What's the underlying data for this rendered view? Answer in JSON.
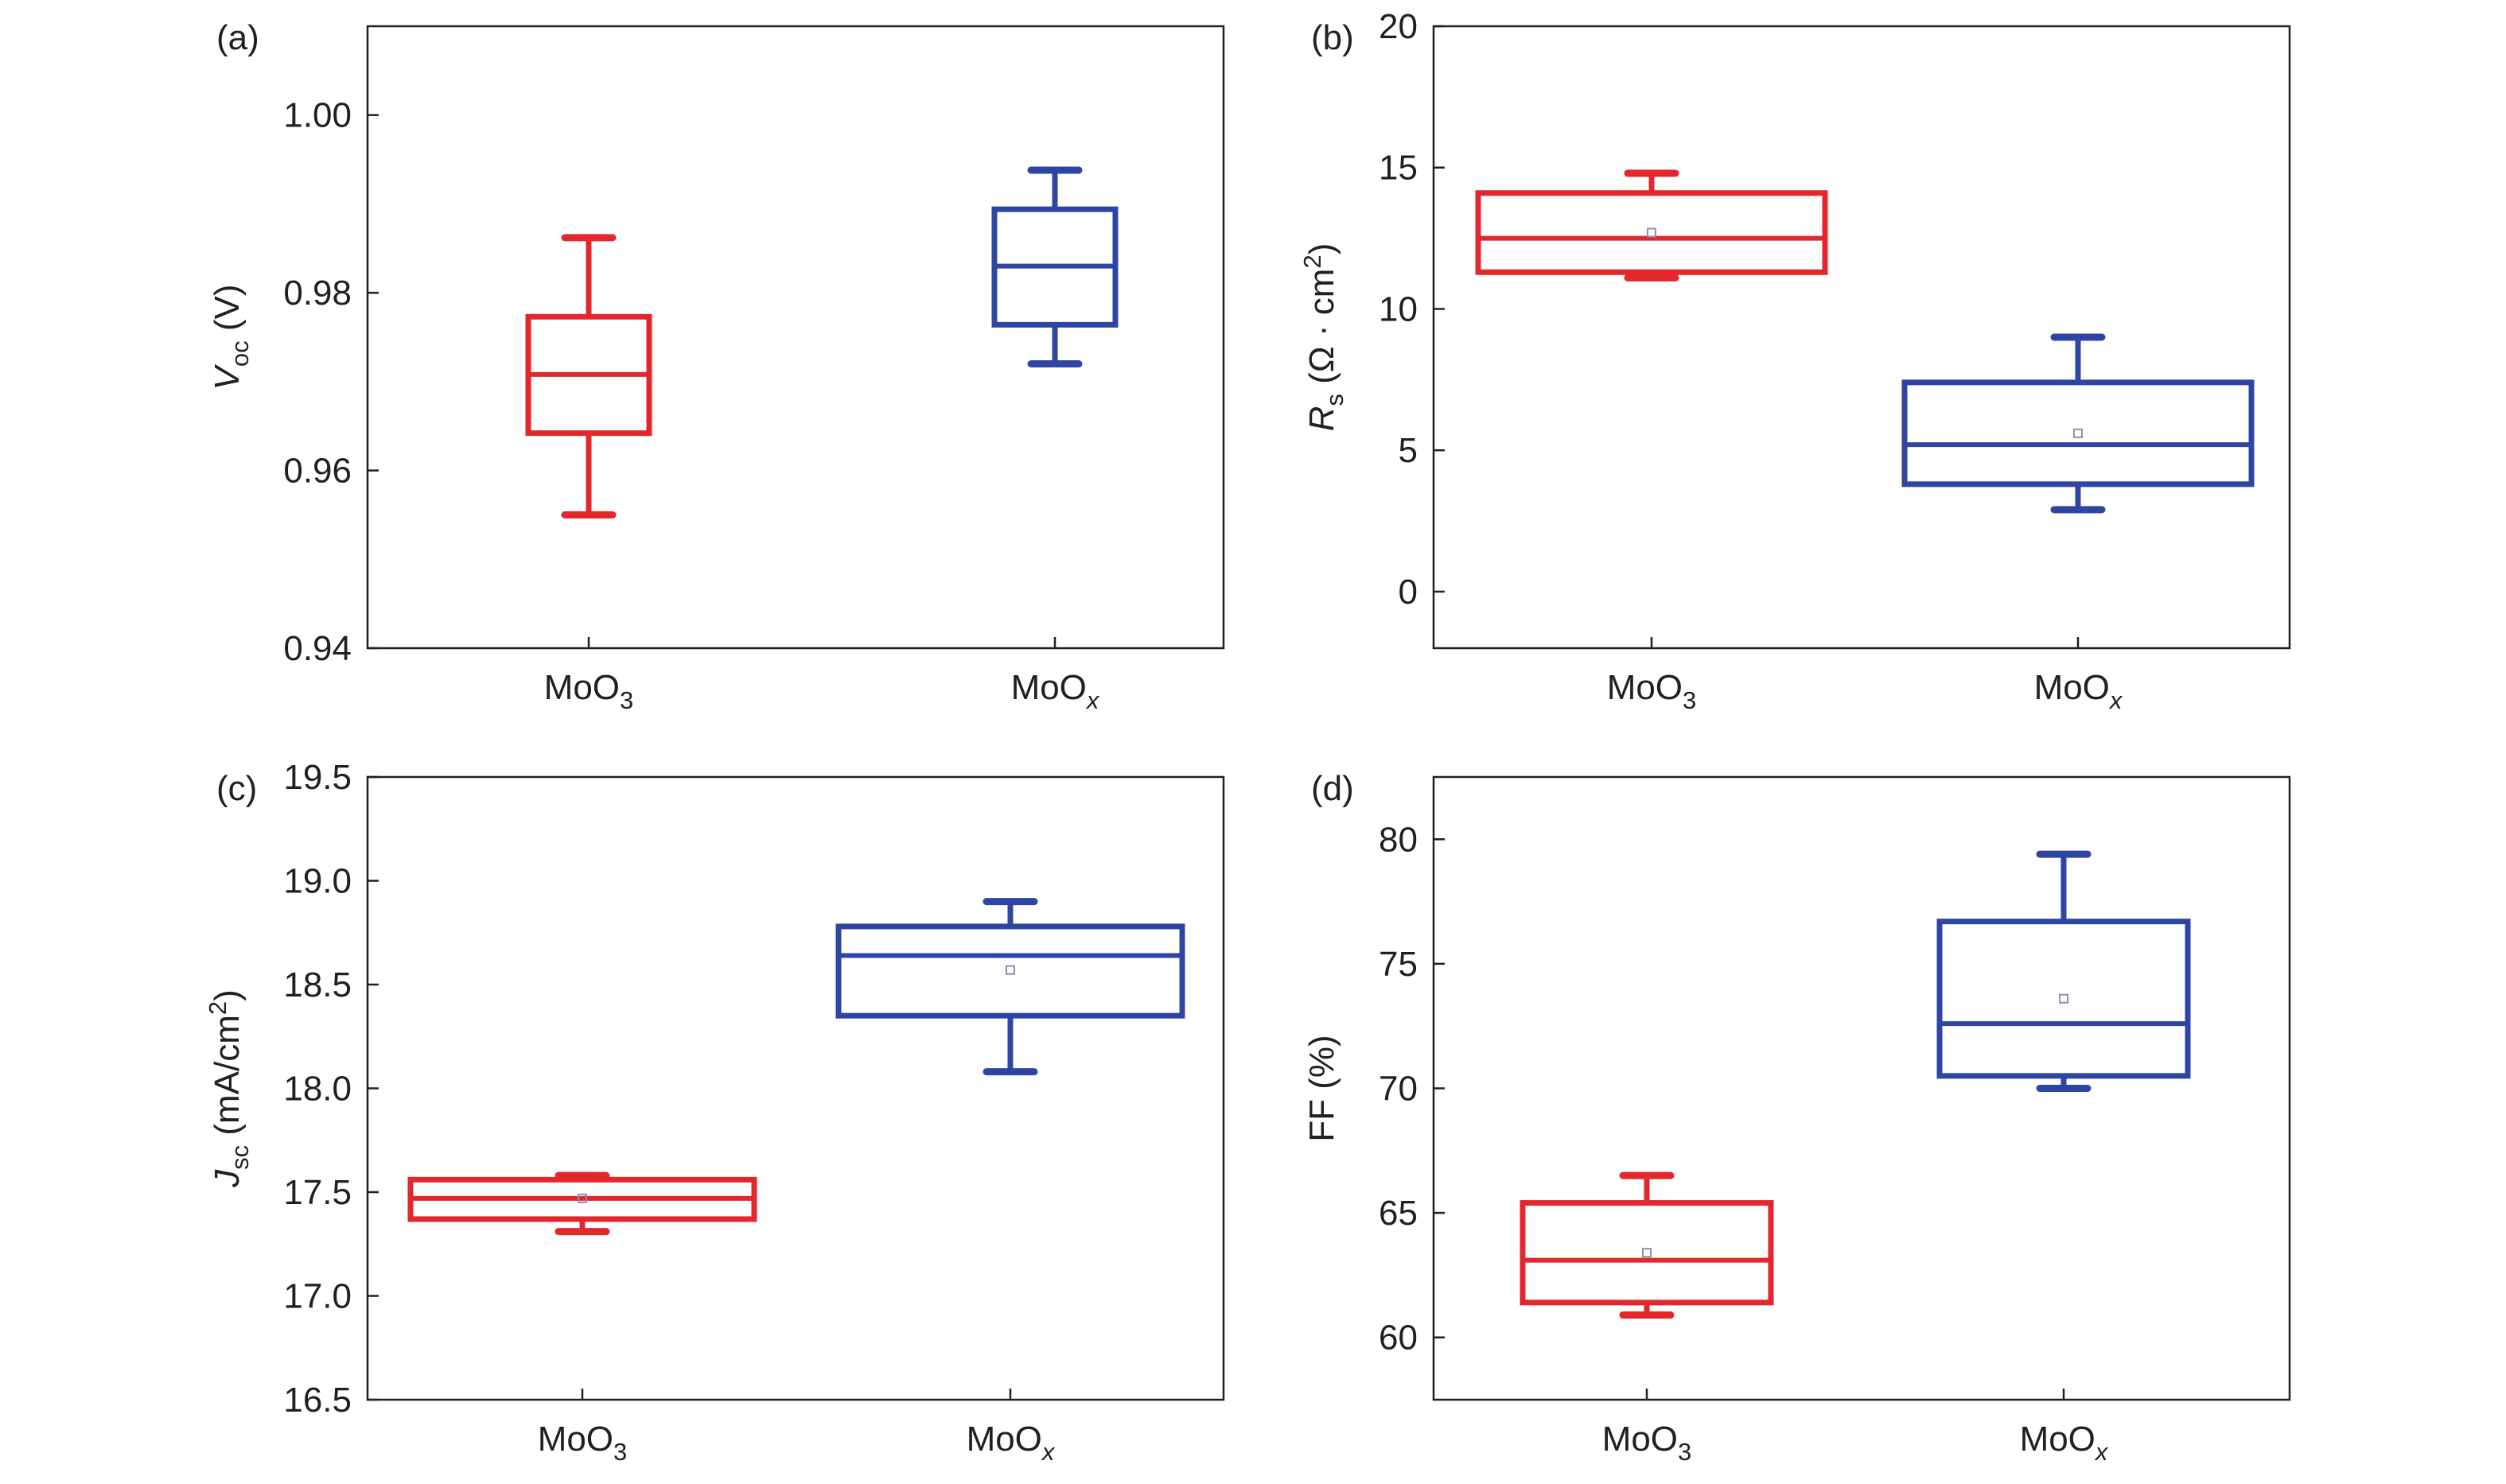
{
  "chart_data": [
    {
      "type": "box",
      "panel_label": "(a)",
      "ylabel": {
        "symbol": "V",
        "subscript": "oc",
        "rest": " (V)"
      },
      "ylim": [
        0.94,
        1.01
      ],
      "yticks": [
        0.94,
        0.96,
        0.98,
        1.0
      ],
      "ytick_labels": [
        "0.94",
        "0.96",
        "0.98",
        "1.00"
      ],
      "categories": [
        {
          "base": "MoO",
          "sub": "3",
          "italic_sub": false
        },
        {
          "base": "MoO",
          "sub": "x",
          "italic_sub": true
        }
      ],
      "boxes": [
        {
          "whisker_low": 0.955,
          "q1": 0.9642,
          "median": 0.9708,
          "q3": 0.9773,
          "whisker_high": 0.9862,
          "mean": null,
          "color": "#e4262d"
        },
        {
          "whisker_low": 0.972,
          "q1": 0.9764,
          "median": 0.983,
          "q3": 0.9894,
          "whisker_high": 0.9938,
          "mean": null,
          "color": "#2e45a4"
        }
      ]
    },
    {
      "type": "box",
      "panel_label": "(b)",
      "ylabel": {
        "symbol": "R",
        "subscript": "s",
        "rest": " (Ω · cm",
        "sup": "2",
        "rest2": ")"
      },
      "ylim": [
        -2,
        20
      ],
      "yticks": [
        0,
        5,
        10,
        15,
        20
      ],
      "ytick_labels": [
        "0",
        "5",
        "10",
        "15",
        "20"
      ],
      "categories": [
        {
          "base": "MoO",
          "sub": "3",
          "italic_sub": false
        },
        {
          "base": "MoO",
          "sub": "x",
          "italic_sub": true
        }
      ],
      "boxes": [
        {
          "whisker_low": 11.1,
          "q1": 11.3,
          "median": 12.5,
          "q3": 14.1,
          "whisker_high": 14.8,
          "mean": 12.7,
          "color": "#e4262d"
        },
        {
          "whisker_low": 2.9,
          "q1": 3.8,
          "median": 5.2,
          "q3": 7.4,
          "whisker_high": 9.0,
          "mean": 5.6,
          "color": "#2e45a4"
        }
      ]
    },
    {
      "type": "box",
      "panel_label": "(c)",
      "ylabel": {
        "symbol": "J",
        "subscript": "sc",
        "rest": " (mA/cm",
        "sup": "2",
        "rest2": ")"
      },
      "ylim": [
        16.5,
        19.5
      ],
      "yticks": [
        16.5,
        17.0,
        17.5,
        18.0,
        18.5,
        19.0,
        19.5
      ],
      "ytick_labels": [
        "16.5",
        "17.0",
        "17.5",
        "18.0",
        "18.5",
        "19.0",
        "19.5"
      ],
      "categories": [
        {
          "base": "MoO",
          "sub": "3",
          "italic_sub": false
        },
        {
          "base": "MoO",
          "sub": "x",
          "italic_sub": true
        }
      ],
      "boxes": [
        {
          "whisker_low": 17.31,
          "q1": 17.37,
          "median": 17.47,
          "q3": 17.56,
          "whisker_high": 17.58,
          "mean": 17.47,
          "color": "#e4262d"
        },
        {
          "whisker_low": 18.08,
          "q1": 18.35,
          "median": 18.64,
          "q3": 18.78,
          "whisker_high": 18.9,
          "mean": 18.57,
          "color": "#2e45a4"
        }
      ]
    },
    {
      "type": "box",
      "panel_label": "(d)",
      "ylabel": {
        "symbol": "FF",
        "subscript": "",
        "rest": " (%)"
      },
      "ylim": [
        57.5,
        82.5
      ],
      "yticks": [
        60,
        65,
        70,
        75,
        80
      ],
      "ytick_labels": [
        "60",
        "65",
        "70",
        "75",
        "80"
      ],
      "categories": [
        {
          "base": "MoO",
          "sub": "3",
          "italic_sub": false
        },
        {
          "base": "MoO",
          "sub": "x",
          "italic_sub": true
        }
      ],
      "boxes": [
        {
          "whisker_low": 60.9,
          "q1": 61.4,
          "median": 63.1,
          "q3": 65.4,
          "whisker_high": 66.5,
          "mean": 63.4,
          "color": "#e4262d"
        },
        {
          "whisker_low": 70.0,
          "q1": 70.5,
          "median": 72.6,
          "q3": 76.7,
          "whisker_high": 79.4,
          "mean": 73.6,
          "color": "#2e45a4"
        }
      ]
    }
  ]
}
